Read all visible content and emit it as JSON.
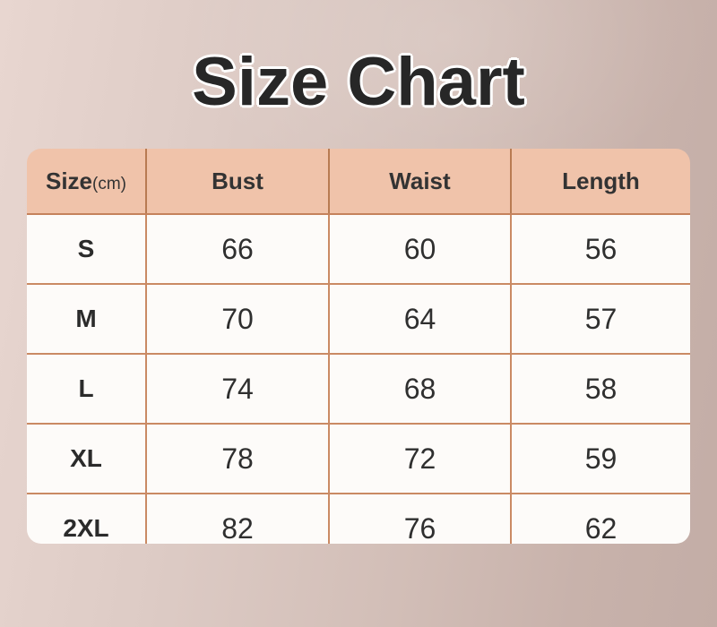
{
  "page": {
    "title": "Size Chart"
  },
  "colors": {
    "title_text": "#272727",
    "title_outline": "#ffffff",
    "header_bg": "#f0c3aa",
    "header_divider": "#b87b52",
    "grid_line": "#ca8a64",
    "cell_bg": "#fdfbf9",
    "body_text": "#2f2f2f",
    "bg_gradient_left": "#e8d6d0",
    "bg_gradient_right": "#c3ada6"
  },
  "table": {
    "header": {
      "size": "Size",
      "size_unit": "(cm)",
      "bust": "Bust",
      "waist": "Waist",
      "length": "Length"
    },
    "rows": [
      {
        "size": "S",
        "bust": "66",
        "waist": "60",
        "length": "56"
      },
      {
        "size": "M",
        "bust": "70",
        "waist": "64",
        "length": "57"
      },
      {
        "size": "L",
        "bust": "74",
        "waist": "68",
        "length": "58"
      },
      {
        "size": "XL",
        "bust": "78",
        "waist": "72",
        "length": "59"
      },
      {
        "size": "2XL",
        "bust": "82",
        "waist": "76",
        "length": "62"
      }
    ]
  },
  "chart_data": {
    "type": "table",
    "title": "Size Chart",
    "unit": "cm",
    "columns": [
      "Size(cm)",
      "Bust",
      "Waist",
      "Length"
    ],
    "rows": [
      [
        "S",
        66,
        60,
        56
      ],
      [
        "M",
        70,
        64,
        57
      ],
      [
        "L",
        74,
        68,
        58
      ],
      [
        "XL",
        78,
        72,
        59
      ],
      [
        "2XL",
        82,
        76,
        62
      ]
    ]
  }
}
